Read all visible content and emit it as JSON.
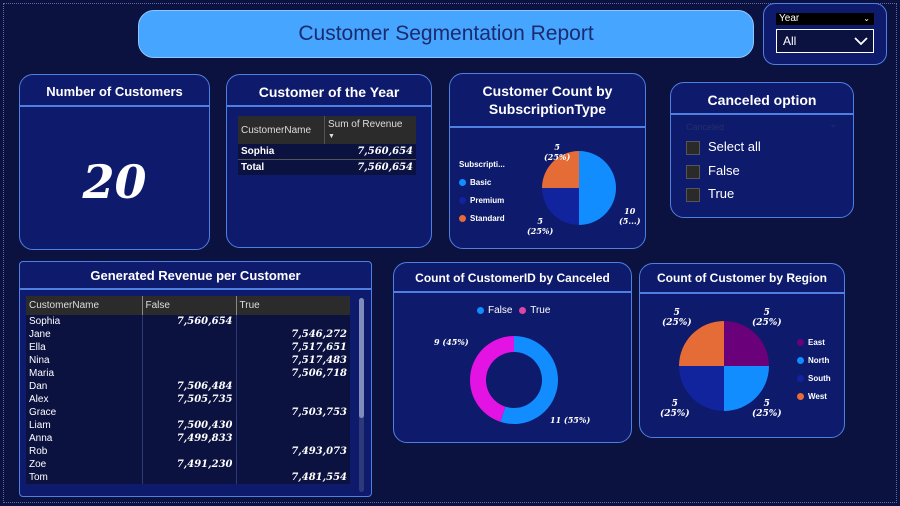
{
  "header": {
    "title": "Customer Segmentation Report"
  },
  "year_filter": {
    "label": "Year",
    "selected": "All"
  },
  "kpi": {
    "title": "Number of Customers",
    "value": "20"
  },
  "customer_of_year": {
    "title": "Customer of the Year",
    "columns": [
      "CustomerName",
      "Sum of Revenue"
    ],
    "rows": [
      {
        "name": "Sophia",
        "value": "7,560,654"
      }
    ],
    "total": {
      "name": "Total",
      "value": "7,560,654"
    }
  },
  "subscription_chart": {
    "title": "Customer Count by SubscriptionType",
    "legend_title": "Subscripti...",
    "legend": [
      {
        "name": "Basic",
        "color": "#118dff"
      },
      {
        "name": "Premium",
        "color": "#12239e"
      },
      {
        "name": "Standard",
        "color": "#e66c37"
      }
    ],
    "labels": {
      "top": "5",
      "top_pct": "(25%)",
      "bottom": "5",
      "bottom_pct": "(25%)",
      "right": "10",
      "right_pct": "(5...)"
    }
  },
  "canceled_slicer": {
    "title": "Canceled option",
    "header": "Canceled",
    "options": [
      "Select all",
      "False",
      "True"
    ]
  },
  "revenue_table": {
    "title": "Generated Revenue per Customer",
    "columns": [
      "CustomerName",
      "False",
      "True"
    ],
    "rows": [
      {
        "name": "Sophia",
        "false": "7,560,654",
        "true": ""
      },
      {
        "name": "Jane",
        "false": "",
        "true": "7,546,272"
      },
      {
        "name": "Ella",
        "false": "",
        "true": "7,517,651"
      },
      {
        "name": "Nina",
        "false": "",
        "true": "7,517,483"
      },
      {
        "name": "Maria",
        "false": "",
        "true": "7,506,718"
      },
      {
        "name": "Dan",
        "false": "7,506,484",
        "true": ""
      },
      {
        "name": "Alex",
        "false": "7,505,735",
        "true": ""
      },
      {
        "name": "Grace",
        "false": "",
        "true": "7,503,753"
      },
      {
        "name": "Liam",
        "false": "7,500,430",
        "true": ""
      },
      {
        "name": "Anna",
        "false": "7,499,833",
        "true": ""
      },
      {
        "name": "Rob",
        "false": "",
        "true": "7,493,073"
      },
      {
        "name": "Zoe",
        "false": "7,491,230",
        "true": ""
      },
      {
        "name": "Tom",
        "false": "",
        "true": "7,481,554"
      }
    ]
  },
  "canceled_chart": {
    "title": "Count of CustomerID by Canceled",
    "legend": [
      {
        "name": "False",
        "color": "#118dff"
      },
      {
        "name": "True",
        "color": "#e044a7"
      }
    ],
    "labels": {
      "true_label": "9 (45%)",
      "false_label": "11 (55%)"
    }
  },
  "region_chart": {
    "title": "Count of Customer by Region",
    "legend": [
      {
        "name": "East",
        "color": "#6b007b"
      },
      {
        "name": "North",
        "color": "#118dff"
      },
      {
        "name": "South",
        "color": "#12239e"
      },
      {
        "name": "West",
        "color": "#e66c37"
      }
    ],
    "labels": {
      "v": "5",
      "p": "(25%)"
    }
  },
  "chart_data": [
    {
      "type": "pie",
      "title": "Customer Count by SubscriptionType",
      "categories": [
        "Basic",
        "Premium",
        "Standard"
      ],
      "values": [
        10,
        5,
        5
      ]
    },
    {
      "type": "pie",
      "title": "Count of CustomerID by Canceled",
      "categories": [
        "False",
        "True"
      ],
      "values": [
        11,
        9
      ]
    },
    {
      "type": "pie",
      "title": "Count of Customer by Region",
      "categories": [
        "East",
        "North",
        "South",
        "West"
      ],
      "values": [
        5,
        5,
        5,
        5
      ]
    }
  ]
}
